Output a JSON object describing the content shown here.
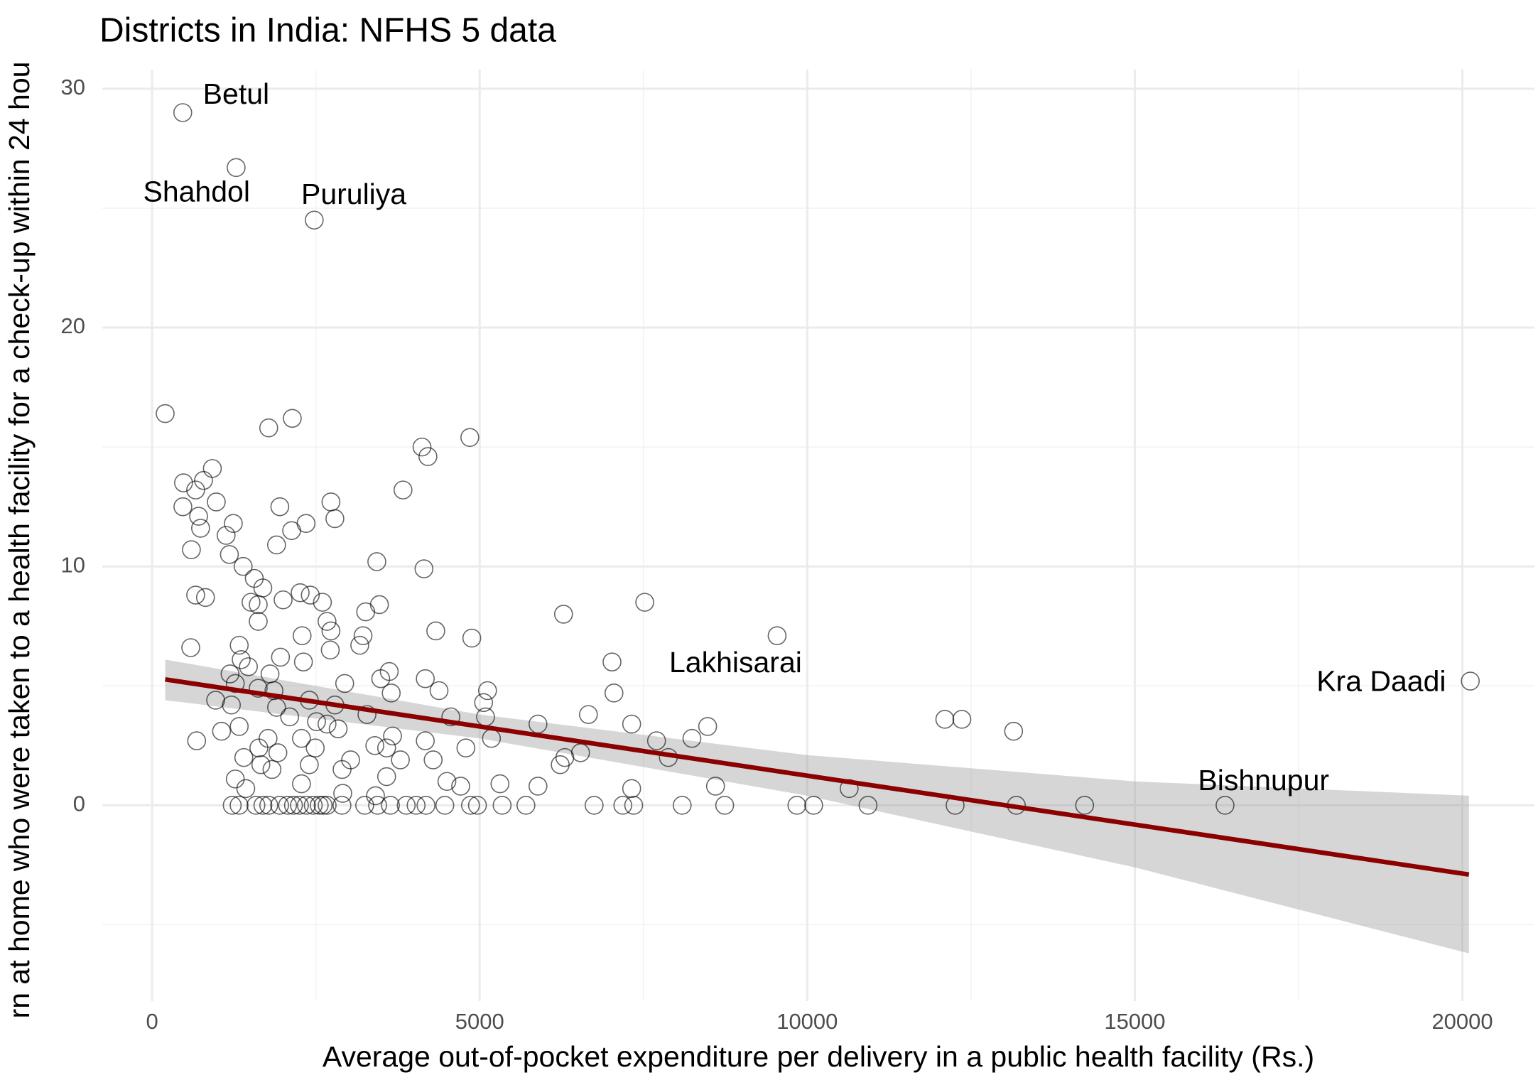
{
  "chart_data": {
    "type": "scatter",
    "title": "Districts in India: NFHS 5 data",
    "xlabel": "Average out-of-pocket expenditure per delivery in a public health facility (Rs.)",
    "ylabel": "rn at home who were taken to a health facility for a check-up within 24 hou",
    "xlim": [
      -760,
      21100
    ],
    "ylim": [
      -8.2,
      30.8
    ],
    "xticks": [
      0,
      5000,
      10000,
      15000,
      20000
    ],
    "yticks": [
      0,
      10,
      20,
      30
    ],
    "grid": true,
    "minor_grid": true,
    "points": {
      "color": "#000000",
      "x": [
        468,
        1283,
        2475,
        7020,
        20121,
        16377,
        200,
        1780,
        2140,
        4850,
        4120,
        4210,
        3830,
        920,
        480,
        785,
        665,
        980,
        470,
        710,
        740,
        1240,
        1950,
        2730,
        2790,
        2350,
        2130,
        1130,
        1900,
        600,
        1180,
        1390,
        3430,
        4150,
        1560,
        665,
        815,
        1690,
        2260,
        2415,
        2600,
        1510,
        1620,
        2000,
        3470,
        3260,
        6280,
        7520,
        1620,
        2290,
        2670,
        2730,
        3220,
        4330,
        4880,
        9540,
        590,
        1330,
        2720,
        3170,
        1960,
        1360,
        2310,
        1470,
        1190,
        1800,
        3620,
        3490,
        4170,
        2940,
        1270,
        1620,
        1860,
        4380,
        5120,
        3650,
        7050,
        970,
        5060,
        2400,
        1210,
        2790,
        1900,
        2100,
        3280,
        4560,
        5090,
        6660,
        2510,
        2670,
        5890,
        7320,
        8480,
        12100,
        12360,
        13150,
        1060,
        1330,
        2840,
        2280,
        3670,
        1770,
        5180,
        680,
        8240,
        7700,
        4170,
        3400,
        1630,
        4790,
        3580,
        2490,
        6540,
        6300,
        7880,
        1920,
        1400,
        3790,
        3030,
        4290,
        6230,
        1660,
        2400,
        2900,
        1830,
        1270,
        3580,
        4500,
        5310,
        2280,
        4710,
        8600,
        7320,
        5890,
        10640,
        1430,
        2910,
        3410,
        1223,
        1328,
        1585,
        1691,
        1781,
        1947,
        2068,
        2158,
        2249,
        2355,
        2460,
        2551,
        2611,
        2672,
        2898,
        3245,
        3442,
        3638,
        3879,
        4030,
        4181,
        4468,
        4860,
        4966,
        5343,
        5706,
        6747,
        7185,
        7351,
        8091,
        8740,
        9842,
        10098,
        10928,
        12257,
        13192,
        14234
      ],
      "y": [
        29.0,
        26.7,
        24.5,
        6.0,
        5.2,
        0,
        16.4,
        15.8,
        16.2,
        15.4,
        15.0,
        14.6,
        13.2,
        14.1,
        13.5,
        13.6,
        13.2,
        12.7,
        12.5,
        12.1,
        11.6,
        11.8,
        12.5,
        12.7,
        12.0,
        11.8,
        11.5,
        11.3,
        10.9,
        10.7,
        10.5,
        10.0,
        10.2,
        9.9,
        9.5,
        8.8,
        8.7,
        9.1,
        8.9,
        8.8,
        8.5,
        8.5,
        8.4,
        8.6,
        8.4,
        8.1,
        8.0,
        8.5,
        7.7,
        7.1,
        7.7,
        7.3,
        7.1,
        7.3,
        7.0,
        7.1,
        6.6,
        6.7,
        6.5,
        6.7,
        6.2,
        6.1,
        6.0,
        5.8,
        5.5,
        5.5,
        5.6,
        5.3,
        5.3,
        5.1,
        5.1,
        4.9,
        4.8,
        4.8,
        4.8,
        4.7,
        4.7,
        4.4,
        4.3,
        4.4,
        4.2,
        4.2,
        4.1,
        3.7,
        3.8,
        3.7,
        3.7,
        3.8,
        3.5,
        3.4,
        3.4,
        3.4,
        3.3,
        3.6,
        3.6,
        3.1,
        3.1,
        3.3,
        3.2,
        2.8,
        2.9,
        2.8,
        2.8,
        2.7,
        2.8,
        2.7,
        2.7,
        2.5,
        2.4,
        2.4,
        2.4,
        2.4,
        2.2,
        2.0,
        2.0,
        2.2,
        2.0,
        1.9,
        1.9,
        1.9,
        1.7,
        1.7,
        1.7,
        1.5,
        1.5,
        1.1,
        1.2,
        1.0,
        0.9,
        0.9,
        0.8,
        0.8,
        0.7,
        0.8,
        0.7,
        0.7,
        0.5,
        0.4,
        0,
        0,
        0,
        0,
        0,
        0,
        0,
        0,
        0,
        0,
        0,
        0,
        0,
        0,
        0,
        0,
        0,
        0,
        0,
        0,
        0,
        0,
        0,
        0,
        0,
        0,
        0,
        0,
        0,
        0,
        0,
        0,
        0,
        0,
        0,
        0,
        0
      ]
    },
    "fit": {
      "color": "#8b0000",
      "band_color": "#999999",
      "x": [
        200,
        5000,
        10000,
        15000,
        20100
      ],
      "y": [
        5.27,
        3.3,
        1.24,
        -0.81,
        -2.9
      ],
      "lower": [
        4.4,
        2.8,
        0.4,
        -2.6,
        -6.2
      ],
      "upper": [
        6.1,
        3.8,
        2.1,
        1.0,
        0.4
      ]
    },
    "annotations": [
      {
        "text": "Betul",
        "x": 1283,
        "y": 29.7
      },
      {
        "text": "Shahdol",
        "x": 679,
        "y": 25.6
      },
      {
        "text": "Puruliya",
        "x": 3079,
        "y": 25.5
      },
      {
        "text": "Lakhisarai",
        "x": 8906,
        "y": 5.9
      },
      {
        "text": "Kra Daadi",
        "x": 18762,
        "y": 5.1
      },
      {
        "text": "Bishnupur",
        "x": 16966,
        "y": 0.95
      }
    ]
  }
}
